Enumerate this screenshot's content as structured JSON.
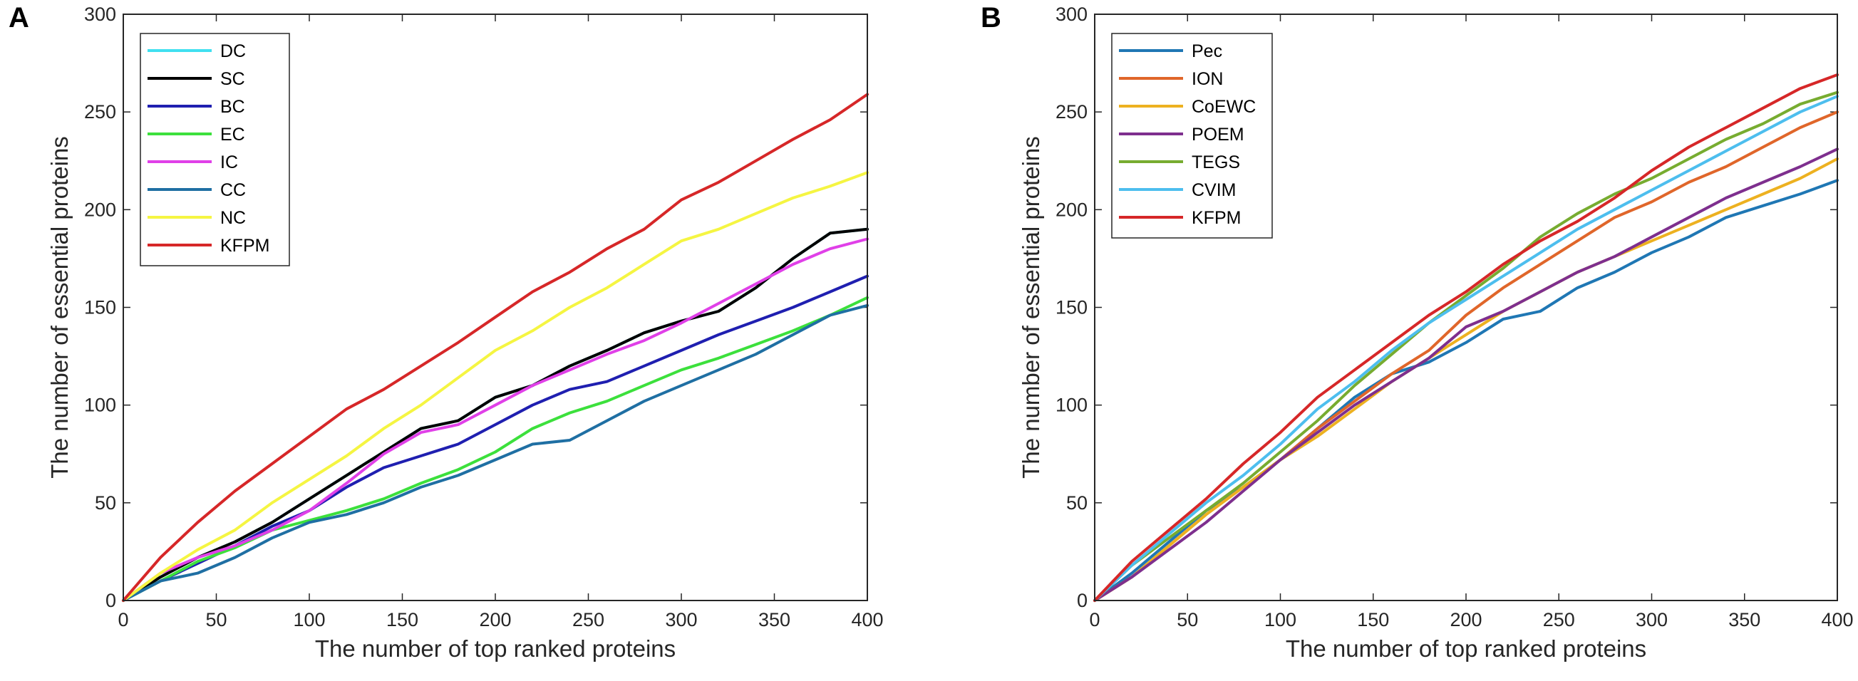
{
  "chart_data": [
    {
      "type": "line",
      "panel": "A",
      "xlabel": "The number of top ranked proteins",
      "ylabel": "The number of essential proteins",
      "xlim": [
        0,
        400
      ],
      "ylim": [
        0,
        300
      ],
      "xticks": [
        0,
        50,
        100,
        150,
        200,
        250,
        300,
        350,
        400
      ],
      "yticks": [
        0,
        50,
        100,
        150,
        200,
        250,
        300
      ],
      "legend_position": "top-left",
      "series": [
        {
          "name": "DC",
          "color": "#40e0f0",
          "x": [
            0,
            20,
            40,
            60,
            80,
            100,
            120,
            140,
            160,
            180,
            200,
            220,
            240,
            260,
            280,
            300,
            320,
            340,
            360,
            380,
            400
          ],
          "y": [
            0,
            12,
            22,
            30,
            40,
            52,
            64,
            76,
            88,
            92,
            104,
            110,
            120,
            128,
            137,
            143,
            148,
            160,
            175,
            188,
            190
          ]
        },
        {
          "name": "SC",
          "color": "#000000",
          "x": [
            0,
            20,
            40,
            60,
            80,
            100,
            120,
            140,
            160,
            180,
            200,
            220,
            240,
            260,
            280,
            300,
            320,
            340,
            360,
            380,
            400
          ],
          "y": [
            0,
            12,
            22,
            30,
            40,
            52,
            64,
            76,
            88,
            92,
            104,
            110,
            120,
            128,
            137,
            143,
            148,
            160,
            175,
            188,
            190
          ]
        },
        {
          "name": "BC",
          "color": "#1f1fb0",
          "x": [
            0,
            20,
            40,
            60,
            80,
            100,
            120,
            140,
            160,
            180,
            200,
            220,
            240,
            260,
            280,
            300,
            320,
            340,
            360,
            380,
            400
          ],
          "y": [
            0,
            10,
            19,
            28,
            38,
            46,
            58,
            68,
            74,
            80,
            90,
            100,
            108,
            112,
            120,
            128,
            136,
            143,
            150,
            158,
            166
          ]
        },
        {
          "name": "EC",
          "color": "#3ce03c",
          "x": [
            0,
            20,
            40,
            60,
            80,
            100,
            120,
            140,
            160,
            180,
            200,
            220,
            240,
            260,
            280,
            300,
            320,
            340,
            360,
            380,
            400
          ],
          "y": [
            0,
            10,
            20,
            27,
            36,
            41,
            46,
            52,
            60,
            67,
            76,
            88,
            96,
            102,
            110,
            118,
            124,
            131,
            138,
            146,
            155
          ]
        },
        {
          "name": "IC",
          "color": "#e040e8",
          "x": [
            0,
            20,
            40,
            60,
            80,
            100,
            120,
            140,
            160,
            180,
            200,
            220,
            240,
            260,
            280,
            300,
            320,
            340,
            360,
            380,
            400
          ],
          "y": [
            0,
            14,
            22,
            28,
            36,
            46,
            60,
            75,
            86,
            90,
            100,
            110,
            118,
            126,
            133,
            142,
            152,
            162,
            172,
            180,
            185
          ]
        },
        {
          "name": "CC",
          "color": "#1f6fa3",
          "x": [
            0,
            20,
            40,
            60,
            80,
            100,
            120,
            140,
            160,
            180,
            200,
            220,
            240,
            260,
            280,
            300,
            320,
            340,
            360,
            380,
            400
          ],
          "y": [
            0,
            10,
            14,
            22,
            32,
            40,
            44,
            50,
            58,
            64,
            72,
            80,
            82,
            92,
            102,
            110,
            118,
            126,
            136,
            146,
            151
          ]
        },
        {
          "name": "NC",
          "color": "#f5f542",
          "x": [
            0,
            20,
            40,
            60,
            80,
            100,
            120,
            140,
            160,
            180,
            200,
            220,
            240,
            260,
            280,
            300,
            320,
            340,
            360,
            380,
            400
          ],
          "y": [
            0,
            14,
            26,
            36,
            50,
            62,
            74,
            88,
            100,
            114,
            128,
            138,
            150,
            160,
            172,
            184,
            190,
            198,
            206,
            212,
            219
          ]
        },
        {
          "name": "KFPM",
          "color": "#d62728",
          "x": [
            0,
            20,
            40,
            60,
            80,
            100,
            120,
            140,
            160,
            180,
            200,
            220,
            240,
            260,
            280,
            300,
            320,
            340,
            360,
            380,
            400
          ],
          "y": [
            0,
            22,
            40,
            56,
            70,
            84,
            98,
            108,
            120,
            132,
            145,
            158,
            168,
            180,
            190,
            205,
            214,
            225,
            236,
            246,
            259
          ]
        }
      ]
    },
    {
      "type": "line",
      "panel": "B",
      "xlabel": "The number of top ranked proteins",
      "ylabel": "The number of essential proteins",
      "xlim": [
        0,
        400
      ],
      "ylim": [
        0,
        300
      ],
      "xticks": [
        0,
        50,
        100,
        150,
        200,
        250,
        300,
        350,
        400
      ],
      "yticks": [
        0,
        50,
        100,
        150,
        200,
        250,
        300
      ],
      "legend_position": "top-left",
      "series": [
        {
          "name": "Pec",
          "color": "#1f77b4",
          "x": [
            0,
            20,
            40,
            60,
            80,
            100,
            120,
            140,
            160,
            180,
            200,
            220,
            240,
            260,
            280,
            300,
            320,
            340,
            360,
            380,
            400
          ],
          "y": [
            0,
            14,
            30,
            46,
            58,
            72,
            88,
            104,
            116,
            122,
            132,
            144,
            148,
            160,
            168,
            178,
            186,
            196,
            202,
            208,
            215
          ]
        },
        {
          "name": "ION",
          "color": "#e0662a",
          "x": [
            0,
            20,
            40,
            60,
            80,
            100,
            120,
            140,
            160,
            180,
            200,
            220,
            240,
            260,
            280,
            300,
            320,
            340,
            360,
            380,
            400
          ],
          "y": [
            0,
            12,
            28,
            44,
            58,
            72,
            88,
            102,
            116,
            128,
            146,
            160,
            172,
            184,
            196,
            204,
            214,
            222,
            232,
            242,
            250
          ]
        },
        {
          "name": "CoEWC",
          "color": "#edb120",
          "x": [
            0,
            20,
            40,
            60,
            80,
            100,
            120,
            140,
            160,
            180,
            200,
            220,
            240,
            260,
            280,
            300,
            320,
            340,
            360,
            380,
            400
          ],
          "y": [
            0,
            12,
            28,
            44,
            58,
            72,
            84,
            98,
            112,
            124,
            136,
            148,
            158,
            168,
            176,
            184,
            192,
            200,
            208,
            216,
            226
          ]
        },
        {
          "name": "POEM",
          "color": "#7e2f8e",
          "x": [
            0,
            20,
            40,
            60,
            80,
            100,
            120,
            140,
            160,
            180,
            200,
            220,
            240,
            260,
            280,
            300,
            320,
            340,
            360,
            380,
            400
          ],
          "y": [
            0,
            12,
            26,
            40,
            56,
            72,
            86,
            100,
            112,
            124,
            140,
            148,
            158,
            168,
            176,
            186,
            196,
            206,
            214,
            222,
            231
          ]
        },
        {
          "name": "TEGS",
          "color": "#77ac30",
          "x": [
            0,
            20,
            40,
            60,
            80,
            100,
            120,
            140,
            160,
            180,
            200,
            220,
            240,
            260,
            280,
            300,
            320,
            340,
            360,
            380,
            400
          ],
          "y": [
            0,
            18,
            32,
            46,
            60,
            76,
            92,
            110,
            126,
            142,
            156,
            170,
            186,
            198,
            208,
            216,
            226,
            236,
            244,
            254,
            260
          ]
        },
        {
          "name": "CVIM",
          "color": "#4dbeee",
          "x": [
            0,
            20,
            40,
            60,
            80,
            100,
            120,
            140,
            160,
            180,
            200,
            220,
            240,
            260,
            280,
            300,
            320,
            340,
            360,
            380,
            400
          ],
          "y": [
            0,
            18,
            34,
            50,
            64,
            80,
            98,
            112,
            128,
            142,
            154,
            166,
            178,
            190,
            200,
            210,
            220,
            230,
            240,
            250,
            258
          ]
        },
        {
          "name": "KFPM",
          "color": "#d62728",
          "x": [
            0,
            20,
            40,
            60,
            80,
            100,
            120,
            140,
            160,
            180,
            200,
            220,
            240,
            260,
            280,
            300,
            320,
            340,
            360,
            380,
            400
          ],
          "y": [
            0,
            20,
            36,
            52,
            70,
            86,
            104,
            118,
            132,
            146,
            158,
            172,
            184,
            194,
            206,
            220,
            232,
            242,
            252,
            262,
            269
          ]
        }
      ]
    }
  ]
}
